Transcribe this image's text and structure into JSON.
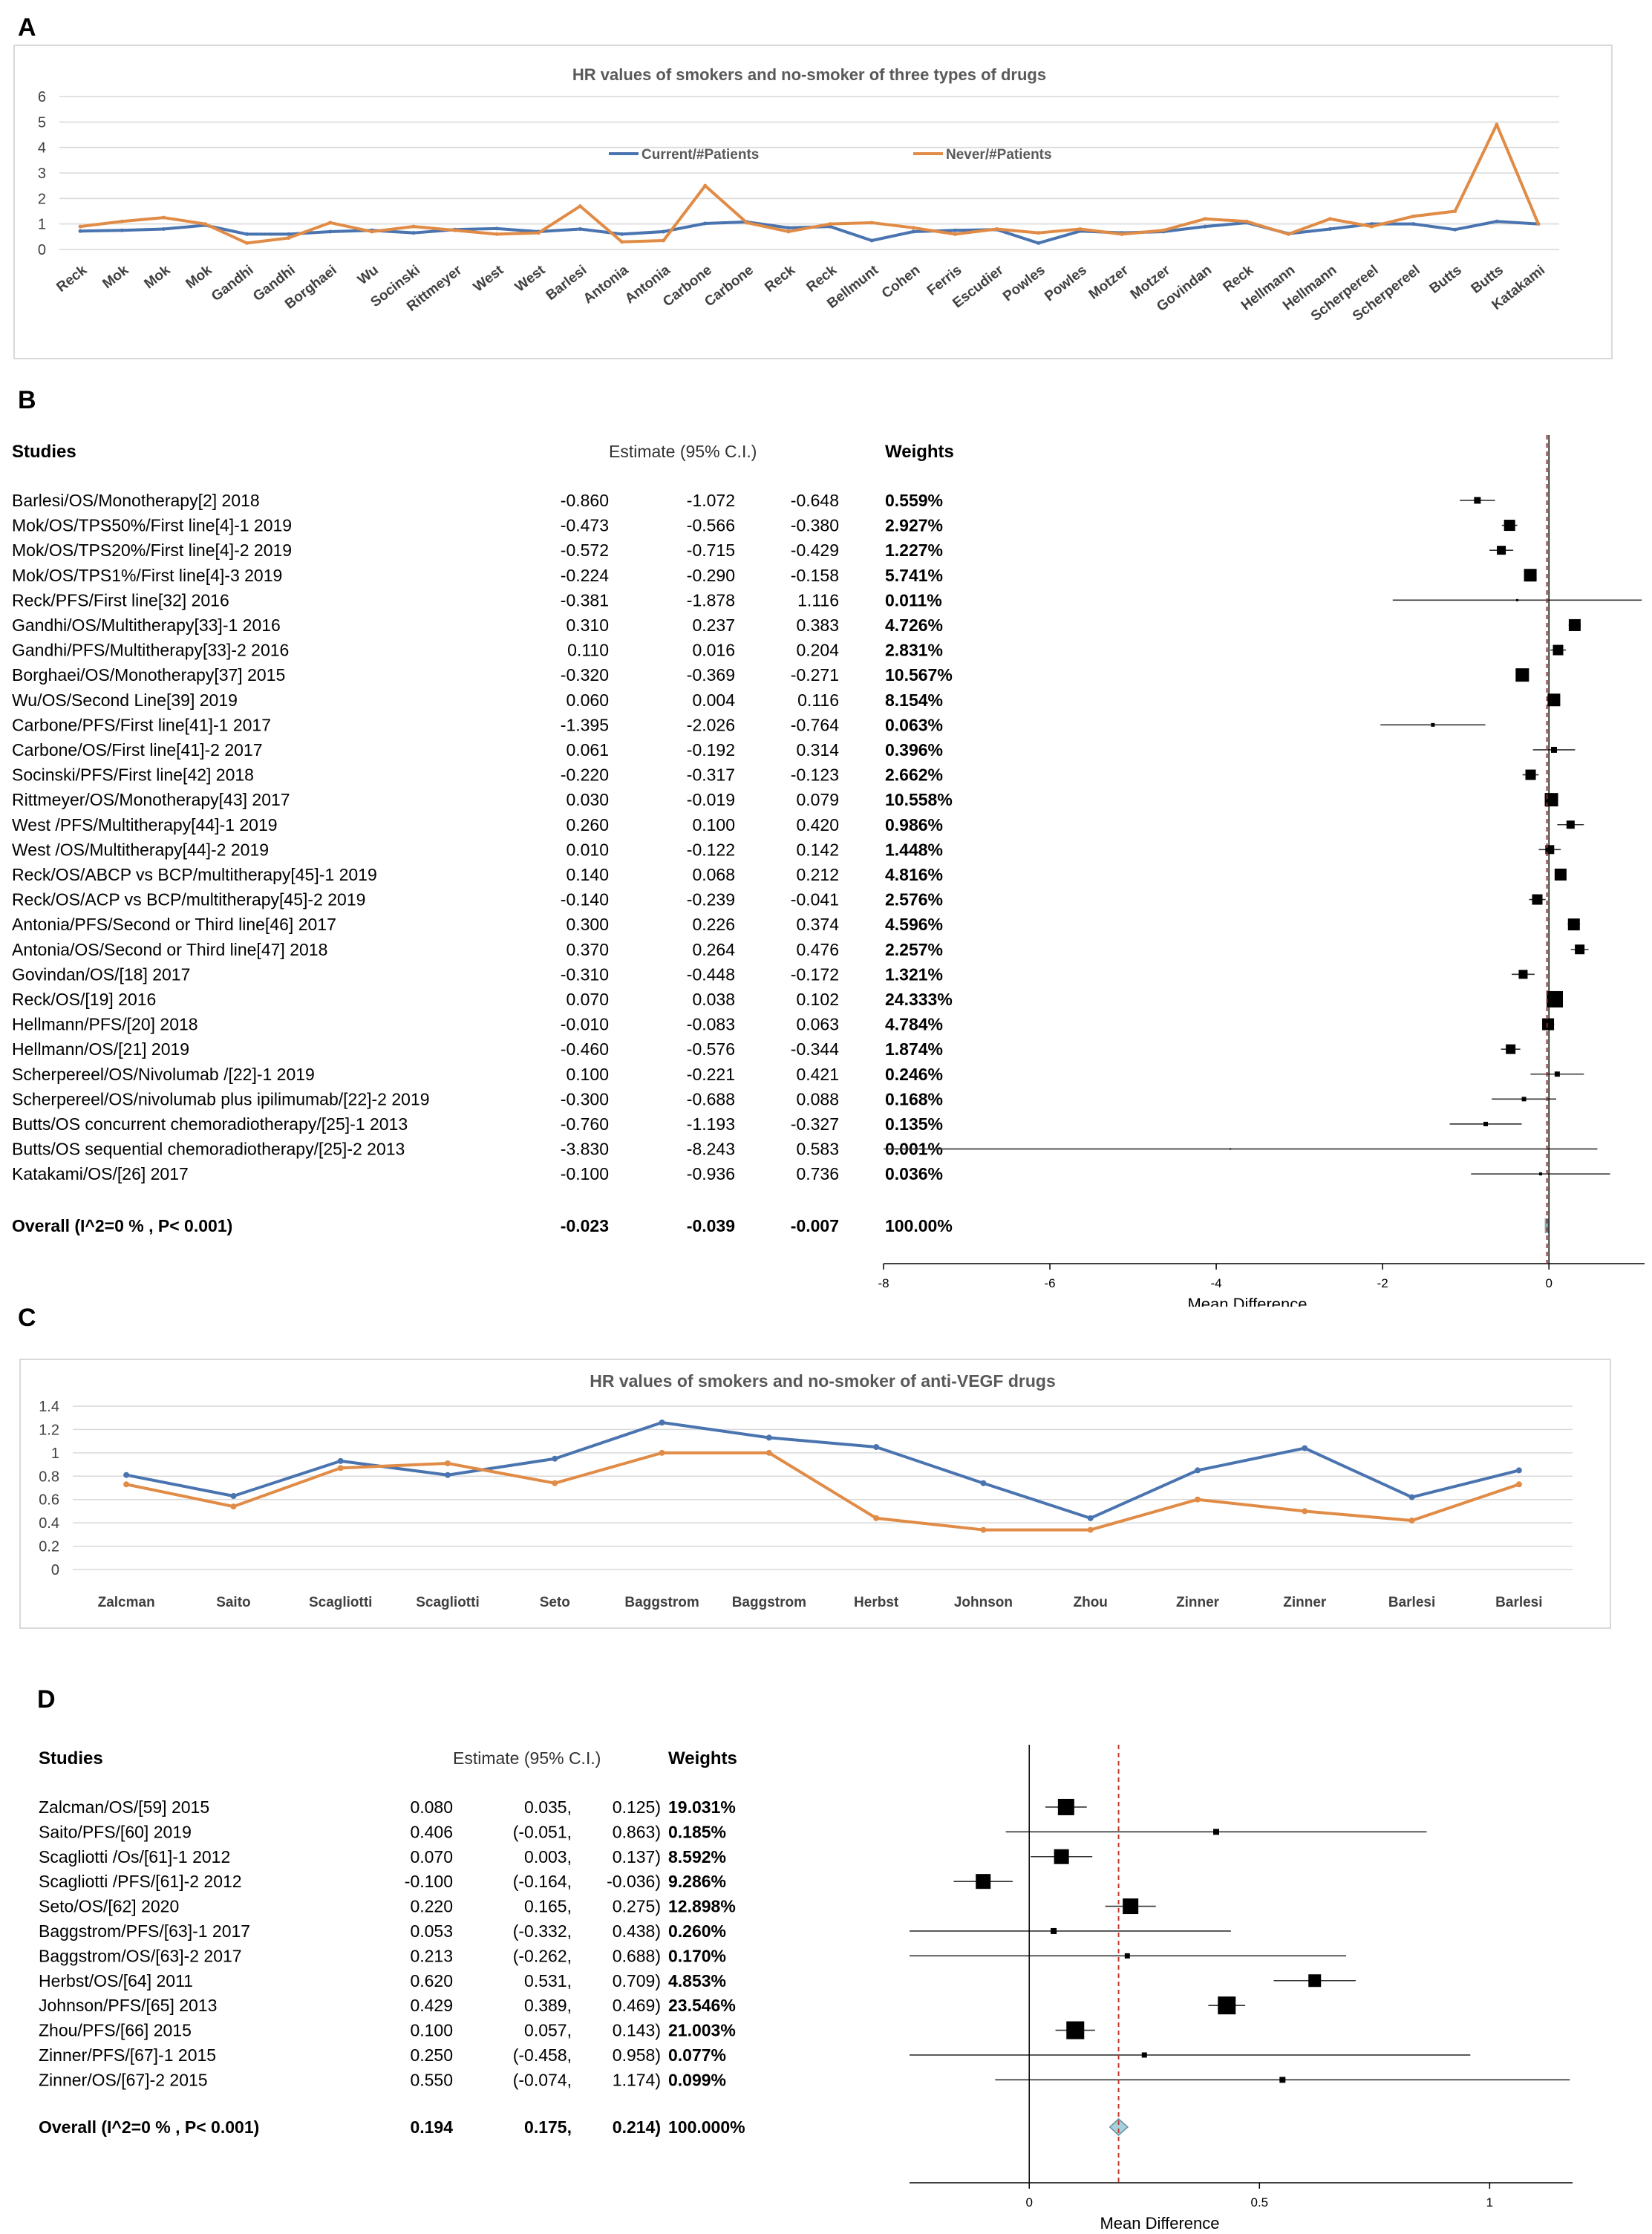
{
  "panels": {
    "a": "A",
    "b": "B",
    "c": "C",
    "d": "D"
  },
  "chart_a": {
    "type": "line",
    "title": "HR values of smokers and no-smoker of three types of drugs",
    "categories": [
      "Reck",
      "Mok",
      "Mok",
      "Mok",
      "Gandhi",
      "Gandhi",
      "Borghaei",
      "Wu",
      "Socinski",
      "Rittmeyer",
      "West",
      "West",
      "Barlesi",
      "Antonia",
      "Antonia",
      "Carbone",
      "Carbone",
      "Reck",
      "Reck",
      "Bellmunt",
      "Cohen",
      "Ferris",
      "Escudier",
      "Powles",
      "Powles",
      "Motzer",
      "Motzer",
      "Govindan",
      "Reck",
      "Hellmann",
      "Hellmann",
      "Scherpereel",
      "Scherpereel",
      "Butts",
      "Butts",
      "Katakami"
    ],
    "ylim": [
      0,
      6
    ],
    "yticks": [
      "0",
      "1",
      "2",
      "3",
      "4",
      "5",
      "6"
    ],
    "series": [
      {
        "name": "Current/#Patients",
        "color": "#4a74b0",
        "values": [
          0.72,
          0.75,
          0.8,
          0.95,
          0.6,
          0.6,
          0.7,
          0.75,
          0.65,
          0.78,
          0.82,
          0.7,
          0.8,
          0.6,
          0.7,
          1.02,
          1.08,
          0.85,
          0.9,
          0.35,
          0.7,
          0.75,
          0.78,
          0.25,
          0.72,
          0.65,
          0.7,
          0.9,
          1.05,
          0.62,
          0.8,
          1.0,
          1.0,
          0.78,
          1.1,
          1.0
        ]
      },
      {
        "name": "Never/#Patients",
        "color": "#e08b46",
        "values": [
          0.9,
          1.1,
          1.25,
          1.0,
          0.25,
          0.45,
          1.05,
          0.7,
          0.9,
          0.75,
          0.6,
          0.65,
          1.7,
          0.3,
          0.35,
          2.5,
          1.05,
          0.7,
          1.0,
          1.05,
          0.85,
          0.6,
          0.8,
          0.65,
          0.8,
          0.6,
          0.75,
          1.2,
          1.1,
          0.6,
          1.2,
          0.9,
          1.3,
          1.5,
          4.9,
          1.0
        ]
      }
    ]
  },
  "forest_b": {
    "header": {
      "studies": "Studies",
      "estimate": "Estimate (95% C.I.)",
      "weights": "Weights"
    },
    "xlabel": "Mean Difference",
    "xticks": [
      "-8",
      "-6",
      "-4",
      "-2",
      "0"
    ],
    "xlim": [
      -8,
      1.15
    ],
    "rows": [
      {
        "label": "Barlesi/OS/Monotherapy[2] 2018",
        "est": "-0.860",
        "lo": "-1.072",
        "hi": "-0.648",
        "w": "0.559%",
        "e": -0.86,
        "l": -1.072,
        "h": -0.648,
        "s": 9
      },
      {
        "label": "Mok/OS/TPS50%/First line[4]-1 2019",
        "est": "-0.473",
        "lo": "-0.566",
        "hi": "-0.380",
        "w": "2.927%",
        "e": -0.473,
        "l": -0.566,
        "h": -0.38,
        "s": 15
      },
      {
        "label": "Mok/OS/TPS20%/First line[4]-2 2019",
        "est": "-0.572",
        "lo": "-0.715",
        "hi": "-0.429",
        "w": "1.227%",
        "e": -0.572,
        "l": -0.715,
        "h": -0.429,
        "s": 12
      },
      {
        "label": "Mok/OS/TPS1%/First line[4]-3  2019",
        "est": "-0.224",
        "lo": "-0.290",
        "hi": "-0.158",
        "w": "5.741%",
        "e": -0.224,
        "l": -0.29,
        "h": -0.158,
        "s": 17
      },
      {
        "label": "Reck/PFS/First line[32] 2016",
        "est": "-0.381",
        "lo": "-1.878",
        "hi": "1.116",
        "w": "0.011%",
        "e": -0.381,
        "l": -1.878,
        "h": 1.116,
        "s": 3
      },
      {
        "label": "Gandhi/OS/Multitherapy[33]-1 2016",
        "est": "0.310",
        "lo": "0.237",
        "hi": "0.383",
        "w": "4.726%",
        "e": 0.31,
        "l": 0.237,
        "h": 0.383,
        "s": 16
      },
      {
        "label": "Gandhi/PFS/Multitherapy[33]-2 2016",
        "est": "0.110",
        "lo": "0.016",
        "hi": "0.204",
        "w": "2.831%",
        "e": 0.11,
        "l": 0.016,
        "h": 0.204,
        "s": 14
      },
      {
        "label": "Borghaei/OS/Monotherapy[37] 2015",
        "est": "-0.320",
        "lo": "-0.369",
        "hi": "-0.271",
        "w": "10.567%",
        "e": -0.32,
        "l": -0.369,
        "h": -0.271,
        "s": 18
      },
      {
        "label": "Wu/OS/Second Line[39] 2019",
        "est": "0.060",
        "lo": "0.004",
        "hi": "0.116",
        "w": "8.154%",
        "e": 0.06,
        "l": 0.004,
        "h": 0.116,
        "s": 17
      },
      {
        "label": "Carbone/PFS/First line[41]-1 2017",
        "est": "-1.395",
        "lo": "-2.026",
        "hi": "-0.764",
        "w": "0.063%",
        "e": -1.395,
        "l": -2.026,
        "h": -0.764,
        "s": 5
      },
      {
        "label": "Carbone/OS/First line[41]-2 2017",
        "est": "0.061",
        "lo": "-0.192",
        "hi": "0.314",
        "w": "0.396%",
        "e": 0.061,
        "l": -0.192,
        "h": 0.314,
        "s": 8
      },
      {
        "label": "Socinski/PFS/First line[42] 2018",
        "est": "-0.220",
        "lo": "-0.317",
        "hi": "-0.123",
        "w": "2.662%",
        "e": -0.22,
        "l": -0.317,
        "h": -0.123,
        "s": 14
      },
      {
        "label": "Rittmeyer/OS/Monotherapy[43] 2017",
        "est": "0.030",
        "lo": "-0.019",
        "hi": "0.079",
        "w": "10.558%",
        "e": 0.03,
        "l": -0.019,
        "h": 0.079,
        "s": 18
      },
      {
        "label": "West /PFS/Multitherapy[44]-1 2019",
        "est": "0.260",
        "lo": "0.100",
        "hi": "0.420",
        "w": "0.986%",
        "e": 0.26,
        "l": 0.1,
        "h": 0.42,
        "s": 11
      },
      {
        "label": "West /OS/Multitherapy[44]-2 2019",
        "est": "0.010",
        "lo": "-0.122",
        "hi": "0.142",
        "w": "1.448%",
        "e": 0.01,
        "l": -0.122,
        "h": 0.142,
        "s": 12
      },
      {
        "label": "Reck/OS/ABCP vs BCP/multitherapy[45]-1 2019",
        "est": "0.140",
        "lo": "0.068",
        "hi": "0.212",
        "w": "4.816%",
        "e": 0.14,
        "l": 0.068,
        "h": 0.212,
        "s": 16
      },
      {
        "label": "Reck/OS/ACP vs BCP/multitherapy[45]-2 2019",
        "est": "-0.140",
        "lo": "-0.239",
        "hi": "-0.041",
        "w": "2.576%",
        "e": -0.14,
        "l": -0.239,
        "h": -0.041,
        "s": 14
      },
      {
        "label": "Antonia/PFS/Second or Third line[46] 2017",
        "est": "0.300",
        "lo": "0.226",
        "hi": "0.374",
        "w": "4.596%",
        "e": 0.3,
        "l": 0.226,
        "h": 0.374,
        "s": 16
      },
      {
        "label": "Antonia/OS/Second or Third line[47] 2018",
        "est": "0.370",
        "lo": "0.264",
        "hi": "0.476",
        "w": "2.257%",
        "e": 0.37,
        "l": 0.264,
        "h": 0.476,
        "s": 13
      },
      {
        "label": "Govindan/OS/[18] 2017",
        "est": "-0.310",
        "lo": "-0.448",
        "hi": "-0.172",
        "w": "1.321%",
        "e": -0.31,
        "l": -0.448,
        "h": -0.172,
        "s": 12
      },
      {
        "label": "Reck/OS/[19] 2016",
        "est": "0.070",
        "lo": "0.038",
        "hi": "0.102",
        "w": "24.333%",
        "e": 0.07,
        "l": 0.038,
        "h": 0.102,
        "s": 22
      },
      {
        "label": "Hellmann/PFS/[20] 2018",
        "est": "-0.010",
        "lo": "-0.083",
        "hi": "0.063",
        "w": "4.784%",
        "e": -0.01,
        "l": -0.083,
        "h": 0.063,
        "s": 16
      },
      {
        "label": "Hellmann/OS/[21] 2019",
        "est": "-0.460",
        "lo": "-0.576",
        "hi": "-0.344",
        "w": "1.874%",
        "e": -0.46,
        "l": -0.576,
        "h": -0.344,
        "s": 13
      },
      {
        "label": "Scherpereel/OS/Nivolumab /[22]-1 2019",
        "est": "0.100",
        "lo": "-0.221",
        "hi": "0.421",
        "w": "0.246%",
        "e": 0.1,
        "l": -0.221,
        "h": 0.421,
        "s": 7
      },
      {
        "label": "Scherpereel/OS/nivolumab plus ipilimumab/[22]-2 2019",
        "est": "-0.300",
        "lo": "-0.688",
        "hi": "0.088",
        "w": "0.168%",
        "e": -0.3,
        "l": -0.688,
        "h": 0.088,
        "s": 6
      },
      {
        "label": "Butts/OS concurrent chemoradiotherapy/[25]-1 2013",
        "est": "-0.760",
        "lo": "-1.193",
        "hi": "-0.327",
        "w": "0.135%",
        "e": -0.76,
        "l": -1.193,
        "h": -0.327,
        "s": 6
      },
      {
        "label": "Butts/OS sequential chemoradiotherapy/[25]-2 2013",
        "est": "-3.830",
        "lo": "-8.243",
        "hi": "0.583",
        "w": "0.001%",
        "e": -3.83,
        "l": -8.243,
        "h": 0.583,
        "s": 2
      },
      {
        "label": "Katakami/OS/[26] 2017",
        "est": "-0.100",
        "lo": "-0.936",
        "hi": "0.736",
        "w": "0.036%",
        "e": -0.1,
        "l": -0.936,
        "h": 0.736,
        "s": 4
      }
    ],
    "overall": {
      "label": "Overall (I^2=0 % , P< 0.001)",
      "est": "-0.023",
      "lo": "-0.039",
      "hi": "-0.007",
      "w": "100.00%",
      "e": -0.023,
      "l": -0.039,
      "h": -0.007
    }
  },
  "chart_c": {
    "type": "line",
    "title": "HR values of smokers and no-smoker of anti-VEGF drugs",
    "categories": [
      "Zalcman",
      "Saito",
      "Scagliotti",
      "Scagliotti",
      "Seto",
      "Baggstrom",
      "Baggstrom",
      "Herbst",
      "Johnson",
      "Zhou",
      "Zinner",
      "Zinner",
      "Barlesi",
      "Barlesi"
    ],
    "ylim": [
      0,
      1.4
    ],
    "yticks": [
      "0",
      "0.2",
      "0.4",
      "0.6",
      "0.8",
      "1",
      "1.2",
      "1.4"
    ],
    "series": [
      {
        "color": "#4a74b0",
        "values": [
          0.81,
          0.63,
          0.93,
          0.81,
          0.95,
          1.26,
          1.13,
          1.05,
          0.74,
          0.44,
          0.85,
          1.04,
          0.62,
          0.85
        ]
      },
      {
        "color": "#e08b46",
        "values": [
          0.73,
          0.54,
          0.87,
          0.91,
          0.74,
          1.0,
          1.0,
          0.44,
          0.34,
          0.34,
          0.6,
          0.5,
          0.42,
          0.73
        ]
      }
    ]
  },
  "forest_d": {
    "header": {
      "studies": "Studies",
      "estimate": "Estimate (95% C.I.)",
      "weights": "Weights"
    },
    "xlabel": "Mean Difference",
    "xticks": [
      "0",
      "0.5",
      "1"
    ],
    "xlim": [
      -0.26,
      1.18
    ],
    "rows": [
      {
        "label": "Zalcman/OS/[59] 2015",
        "est": "0.080",
        "lo": "0.035,",
        "hi": "0.125)",
        "w": "19.031%",
        "e": 0.08,
        "l": 0.035,
        "h": 0.125,
        "s": 22
      },
      {
        "label": "Saito/PFS/[60] 2019",
        "est": "0.406",
        "lo": "(-0.051,",
        "hi": "0.863)",
        "w": "0.185%",
        "e": 0.406,
        "l": -0.051,
        "h": 0.863,
        "s": 8
      },
      {
        "label": "Scagliotti /Os/[61]-1 2012",
        "est": "0.070",
        "lo": "0.003,",
        "hi": "0.137)",
        "w": "8.592%",
        "e": 0.07,
        "l": 0.003,
        "h": 0.137,
        "s": 20
      },
      {
        "label": "Scagliotti /PFS/[61]-2 2012",
        "est": "-0.100",
        "lo": "(-0.164,",
        "hi": "-0.036)",
        "w": "9.286%",
        "e": -0.1,
        "l": -0.164,
        "h": -0.036,
        "s": 20
      },
      {
        "label": "Seto/OS/[62] 2020",
        "est": "0.220",
        "lo": "0.165,",
        "hi": "0.275)",
        "w": "12.898%",
        "e": 0.22,
        "l": 0.165,
        "h": 0.275,
        "s": 21
      },
      {
        "label": "Baggstrom/PFS/[63]-1 2017",
        "est": "0.053",
        "lo": "(-0.332,",
        "hi": "0.438)",
        "w": "0.260%",
        "e": 0.053,
        "l": -0.332,
        "h": 0.438,
        "s": 8
      },
      {
        "label": "Baggstrom/OS/[63]-2 2017",
        "est": "0.213",
        "lo": "(-0.262,",
        "hi": "0.688)",
        "w": "0.170%",
        "e": 0.213,
        "l": -0.262,
        "h": 0.688,
        "s": 7
      },
      {
        "label": "Herbst/OS/[64] 2011",
        "est": "0.620",
        "lo": "0.531,",
        "hi": "0.709)",
        "w": "4.853%",
        "e": 0.62,
        "l": 0.531,
        "h": 0.709,
        "s": 17
      },
      {
        "label": "Johnson/PFS/[65] 2013",
        "est": "0.429",
        "lo": "0.389,",
        "hi": "0.469)",
        "w": "23.546%",
        "e": 0.429,
        "l": 0.389,
        "h": 0.469,
        "s": 24
      },
      {
        "label": "Zhou/PFS/[66] 2015",
        "est": "0.100",
        "lo": "0.057,",
        "hi": "0.143)",
        "w": "21.003%",
        "e": 0.1,
        "l": 0.057,
        "h": 0.143,
        "s": 24
      },
      {
        "label": "Zinner/PFS/[67]-1 2015",
        "est": "0.250",
        "lo": "(-0.458,",
        "hi": "0.958)",
        "w": "0.077%",
        "e": 0.25,
        "l": -0.458,
        "h": 0.958,
        "s": 7
      },
      {
        "label": "Zinner/OS/[67]-2 2015",
        "est": "0.550",
        "lo": "(-0.074,",
        "hi": "1.174)",
        "w": "0.099%",
        "e": 0.55,
        "l": -0.074,
        "h": 1.174,
        "s": 8
      }
    ],
    "overall": {
      "label": "Overall (I^2=0 % , P< 0.001)",
      "est": "0.194",
      "lo": "0.175,",
      "hi": "0.214)",
      "w": "100.000%",
      "e": 0.194,
      "l": 0.175,
      "h": 0.214
    }
  }
}
